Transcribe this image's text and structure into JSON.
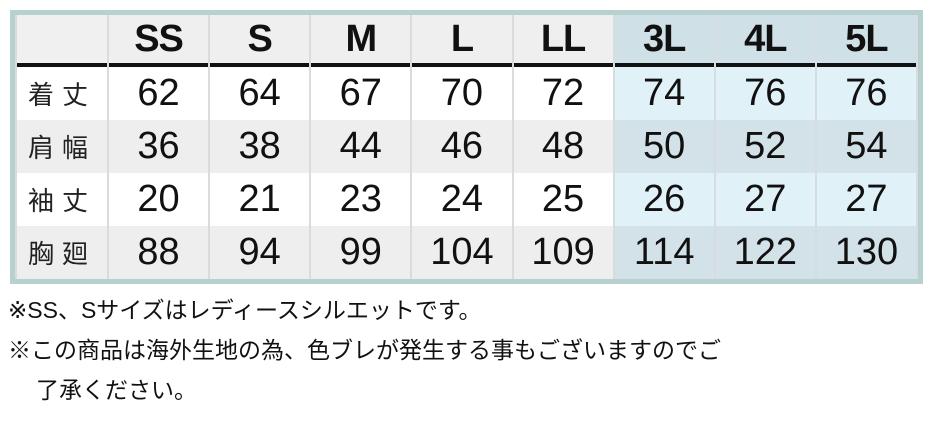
{
  "table": {
    "headers": [
      "",
      "SS",
      "S",
      "M",
      "L",
      "LL",
      "3L",
      "4L",
      "5L"
    ],
    "rows": [
      {
        "label": "着丈",
        "values": [
          "62",
          "64",
          "67",
          "70",
          "72",
          "74",
          "76",
          "76"
        ]
      },
      {
        "label": "肩幅",
        "values": [
          "36",
          "38",
          "44",
          "46",
          "48",
          "50",
          "52",
          "54"
        ]
      },
      {
        "label": "袖丈",
        "values": [
          "20",
          "21",
          "23",
          "24",
          "25",
          "26",
          "27",
          "27"
        ]
      },
      {
        "label": "胸廻",
        "values": [
          "88",
          "94",
          "99",
          "104",
          "109",
          "114",
          "122",
          "130"
        ]
      }
    ]
  },
  "notes": [
    "※SS、Sサイズはレディースシルエットです。",
    "※この商品は海外生地の為、色ブレが発生する事もございますのでご",
    "了承ください。"
  ]
}
